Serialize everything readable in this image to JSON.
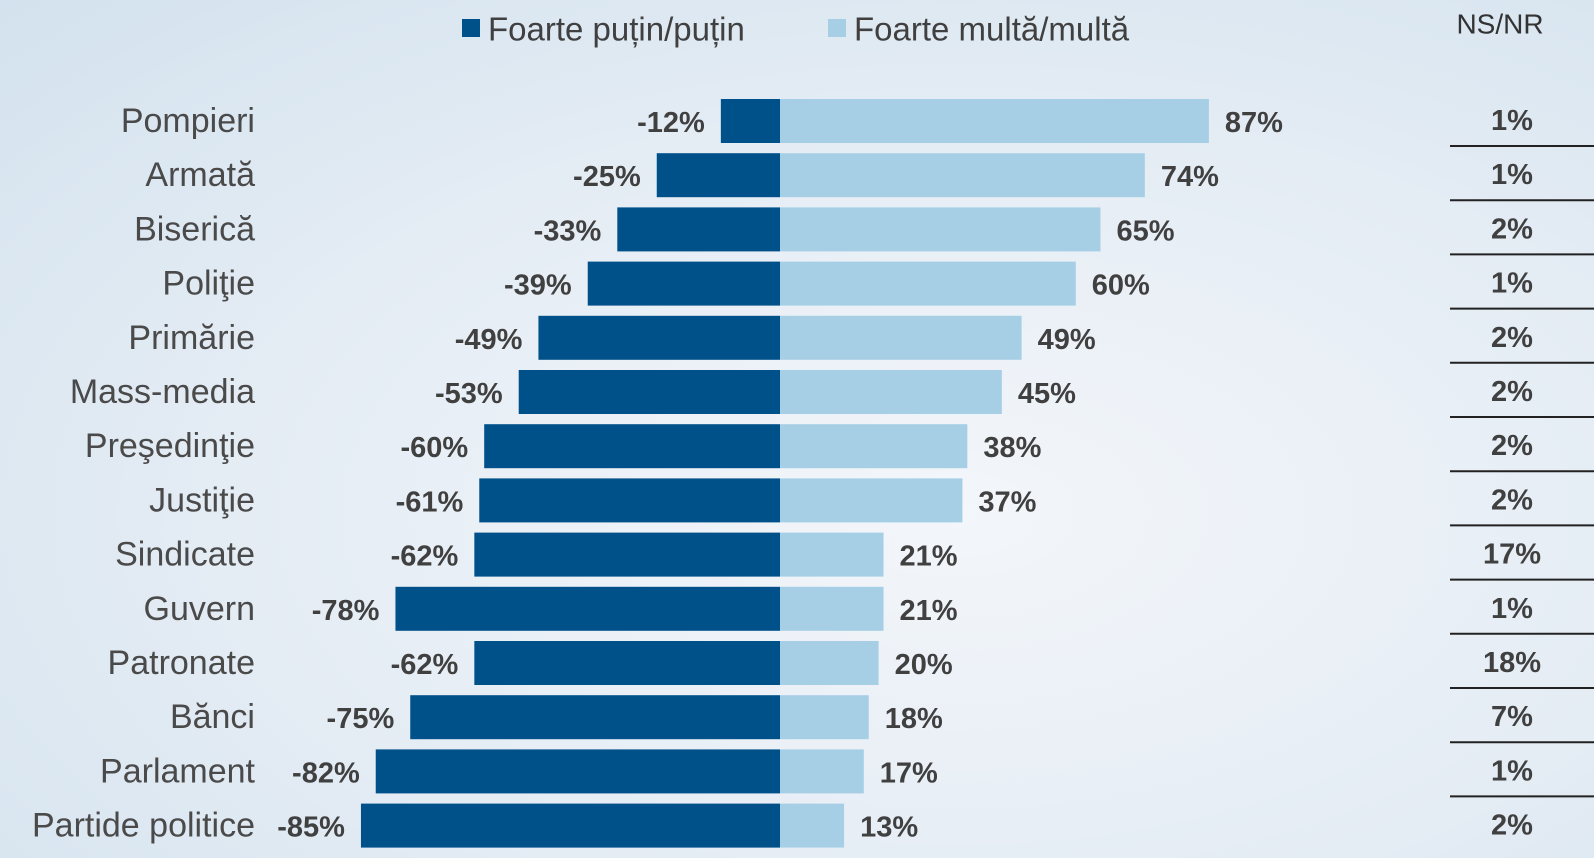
{
  "chart_data": {
    "type": "diverging_bar",
    "categories": [
      "Pompieri",
      "Armată",
      "Biserică",
      "Poliţie",
      "Primărie",
      "Mass-media",
      "Preşedinţie",
      "Justiţie",
      "Sindicate",
      "Guvern",
      "Patronate",
      "Bănci",
      "Parlament",
      "Partide politice"
    ],
    "series": [
      {
        "name": "Foarte puțin/puțin",
        "color": "#00508a",
        "values": [
          -12,
          -25,
          -33,
          -39,
          -49,
          -53,
          -60,
          -61,
          -62,
          -78,
          -62,
          -75,
          -82,
          -85
        ],
        "value_labels": [
          "-12%",
          "-25%",
          "-33%",
          "-39%",
          "-49%",
          "-53%",
          "-60%",
          "-61%",
          "-62%",
          "-78%",
          "-62%",
          "-75%",
          "-82%",
          "-85%"
        ]
      },
      {
        "name": "Foarte multă/multă",
        "color": "#a6cfe5",
        "values": [
          87,
          74,
          65,
          60,
          49,
          45,
          38,
          37,
          21,
          21,
          20,
          18,
          17,
          13
        ],
        "value_labels": [
          "87%",
          "74%",
          "65%",
          "60%",
          "49%",
          "45%",
          "38%",
          "37%",
          "21%",
          "21%",
          "20%",
          "18%",
          "17%",
          "13%"
        ]
      }
    ],
    "ns_nr": {
      "title": "NS/NR",
      "values": [
        1,
        1,
        2,
        1,
        2,
        2,
        2,
        2,
        17,
        1,
        18,
        7,
        1,
        2
      ],
      "value_labels": [
        "1%",
        "1%",
        "2%",
        "1%",
        "2%",
        "2%",
        "2%",
        "2%",
        "17%",
        "1%",
        "18%",
        "7%",
        "1%",
        "2%"
      ]
    }
  }
}
